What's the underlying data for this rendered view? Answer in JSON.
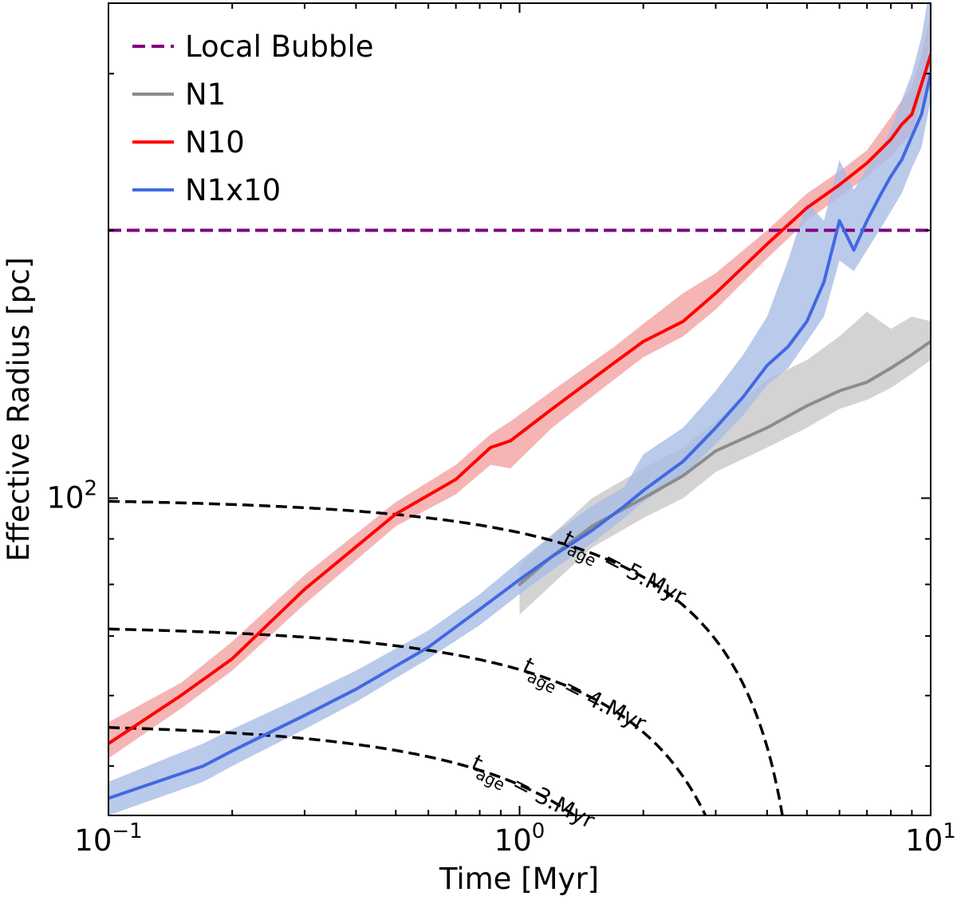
{
  "chart_data": {
    "type": "line",
    "xscale": "log",
    "yscale": "log",
    "xlim": [
      0.1,
      10
    ],
    "ylim": [
      44,
      360
    ],
    "xlabel": "Time [Myr]",
    "ylabel": "Effective Radius [pc]",
    "x_major_ticks": [
      {
        "value": 0.1,
        "base": "10",
        "exp": "−1"
      },
      {
        "value": 1,
        "base": "10",
        "exp": "0"
      },
      {
        "value": 10,
        "base": "10",
        "exp": "1"
      }
    ],
    "y_major_ticks": [
      {
        "value": 100,
        "base": "10",
        "exp": "2"
      }
    ],
    "legend_position": "top-left",
    "reference_lines": [
      {
        "name": "Local Bubble",
        "y": 200,
        "color": "#800080",
        "style": "dashed"
      }
    ],
    "series": [
      {
        "name": "N1",
        "color": "#8c8c8c",
        "band_color": "#c8c8c8",
        "x": [
          1.0,
          1.2,
          1.5,
          2.0,
          2.5,
          3.0,
          4.0,
          5.0,
          6.0,
          7.0,
          8.0,
          9.0,
          10.0
        ],
        "y": [
          80,
          86,
          93,
          100,
          106,
          113,
          120,
          127,
          132,
          135,
          140,
          145,
          150
        ],
        "band_low": [
          74,
          80,
          88,
          95,
          100,
          107,
          114,
          120,
          126,
          129,
          133,
          138,
          143
        ],
        "band_high": [
          84,
          91,
          100,
          108,
          114,
          122,
          136,
          143,
          152,
          162,
          155,
          160,
          158
        ]
      },
      {
        "name": "N10",
        "color": "#ff0000",
        "band_color": "#f4a3a3",
        "x": [
          0.1,
          0.15,
          0.2,
          0.3,
          0.5,
          0.7,
          0.85,
          0.95,
          1.2,
          1.7,
          2.0,
          2.5,
          3.0,
          4.0,
          5.0,
          6.0,
          7.0,
          8.0,
          8.5,
          9.0,
          9.5,
          10.0
        ],
        "y": [
          53,
          60,
          66,
          79,
          96,
          105,
          114,
          116,
          126,
          142,
          150,
          158,
          170,
          193,
          212,
          225,
          238,
          253,
          263,
          270,
          292,
          315
        ],
        "band_low": [
          51,
          58,
          64,
          76,
          93,
          101,
          109,
          108,
          120,
          136,
          144,
          152,
          163,
          186,
          205,
          218,
          230,
          242,
          250,
          257,
          278,
          300
        ],
        "band_high": [
          56,
          62,
          69,
          82,
          99,
          109,
          118,
          122,
          132,
          148,
          157,
          170,
          179,
          200,
          220,
          233,
          246,
          268,
          280,
          290,
          315,
          350
        ]
      },
      {
        "name": "N1x10",
        "color": "#4169e1",
        "band_color": "#a9bde6",
        "x": [
          0.1,
          0.17,
          0.2,
          0.3,
          0.4,
          0.6,
          0.8,
          1.0,
          1.2,
          1.5,
          1.8,
          2.0,
          2.5,
          3.0,
          3.5,
          4.0,
          4.5,
          5.0,
          5.5,
          6.0,
          6.5,
          7.0,
          7.5,
          8.0,
          8.5,
          9.0,
          9.5,
          10.0
        ],
        "y": [
          46,
          50,
          52,
          57,
          61,
          68,
          75,
          81,
          86,
          92,
          98,
          102,
          110,
          120,
          130,
          141,
          148,
          158,
          175,
          205,
          190,
          205,
          218,
          230,
          240,
          255,
          270,
          300
        ],
        "band_low": [
          44,
          48,
          50,
          55,
          59,
          66,
          72,
          78,
          83,
          89,
          95,
          99,
          106,
          115,
          124,
          134,
          140,
          150,
          160,
          185,
          180,
          190,
          200,
          210,
          220,
          235,
          248,
          280
        ],
        "band_high": [
          48,
          53,
          55,
          60,
          64,
          71,
          78,
          85,
          91,
          98,
          103,
          112,
          120,
          132,
          145,
          160,
          185,
          215,
          205,
          240,
          222,
          235,
          245,
          260,
          280,
          300,
          330,
          380
        ]
      }
    ],
    "isochrones": [
      {
        "label_base": "t",
        "label_sub": "age",
        "label_rest": " = 3.Myr",
        "age": 3,
        "r0": 56
      },
      {
        "label_base": "t",
        "label_sub": "age",
        "label_rest": " = 4.Myr",
        "age": 4,
        "r0": 72
      },
      {
        "label_base": "t",
        "label_sub": "age",
        "label_rest": " = 5.Myr",
        "age": 5,
        "r0": 100
      }
    ]
  }
}
